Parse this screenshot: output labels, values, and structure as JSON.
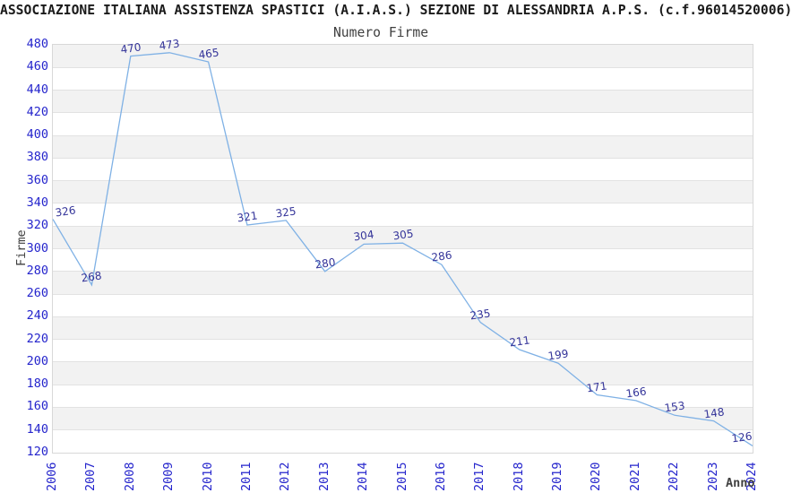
{
  "chart_data": {
    "type": "line",
    "title": "ASSOCIAZIONE ITALIANA ASSISTENZA SPASTICI (A.I.A.S.) SEZIONE DI ALESSANDRIA A.P.S. (c.f.96014520006)",
    "subtitle": "Numero Firme",
    "xlabel": "Anno",
    "ylabel": "Firme",
    "categories": [
      "2006",
      "2007",
      "2008",
      "2009",
      "2010",
      "2011",
      "2012",
      "2013",
      "2014",
      "2015",
      "2016",
      "2017",
      "2018",
      "2019",
      "2020",
      "2021",
      "2022",
      "2023",
      "2024"
    ],
    "values": [
      326,
      268,
      470,
      473,
      465,
      321,
      325,
      280,
      304,
      305,
      286,
      235,
      211,
      199,
      171,
      166,
      153,
      148,
      126
    ],
    "ylim": [
      120,
      480
    ],
    "ytick_step": 20,
    "legend": "none",
    "grid": "horizontal-bands",
    "colors": {
      "line": "#7FB1E5",
      "tick_labels": "#2424CC",
      "value_labels": "#333399",
      "axis_titles": "#404040",
      "title_text": "#1A1A1A",
      "band_fill": "#F2F2F2",
      "band_alt_fill": "#FFFFFF",
      "grid_line": "#E2E2E2",
      "plot_border": "#D8D8D8",
      "background": "#FFFFFF"
    }
  }
}
